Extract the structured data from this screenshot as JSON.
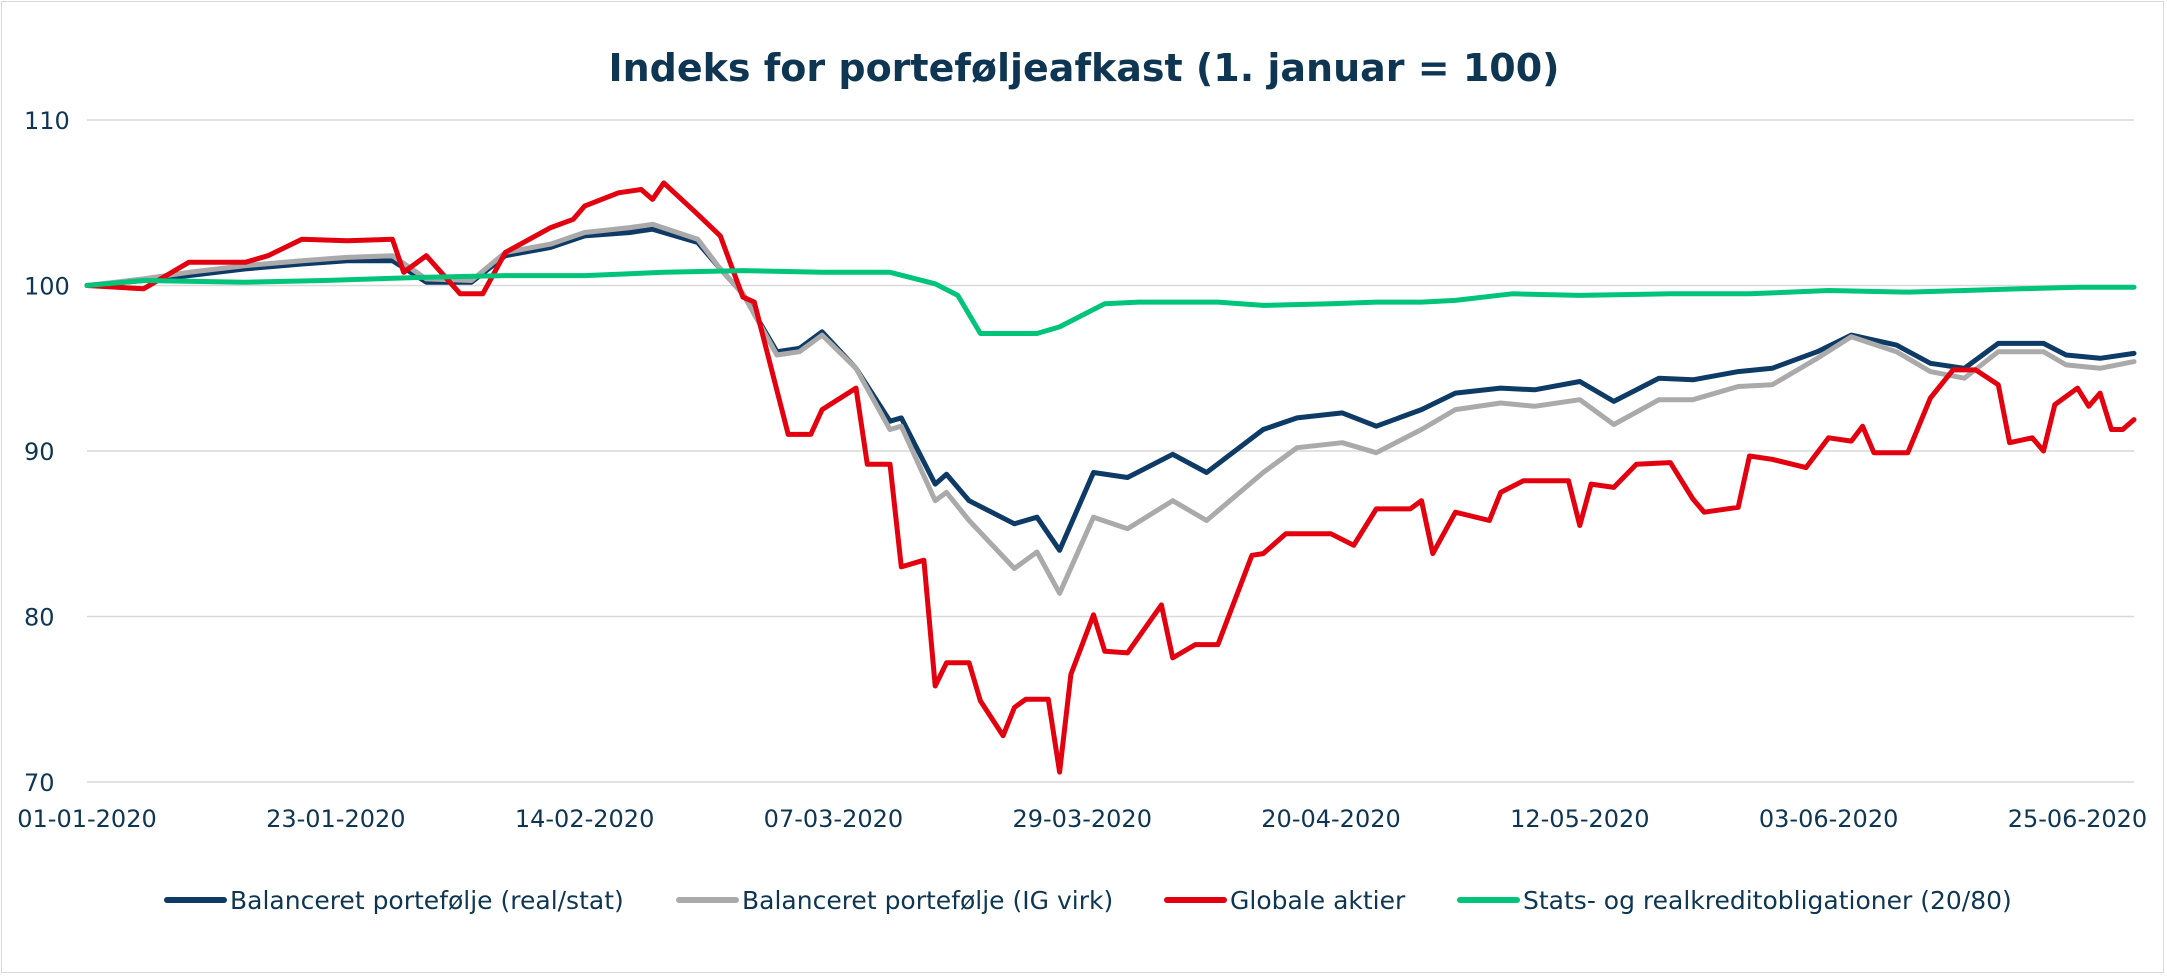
{
  "chart_data": {
    "type": "line",
    "title": "Indeks for porteføljeafkast (1. januar = 100)",
    "xlabel": "",
    "ylabel": "",
    "ylim": [
      70,
      110
    ],
    "yticks": [
      70,
      80,
      90,
      100,
      110
    ],
    "xticks": [
      "01-01-2020",
      "23-01-2020",
      "14-02-2020",
      "07-03-2020",
      "29-03-2020",
      "20-04-2020",
      "12-05-2020",
      "03-06-2020",
      "25-06-2020"
    ],
    "xlim": [
      "2020-01-01",
      "2020-06-30"
    ],
    "grid": "horizontal",
    "legend_position": "bottom",
    "series": [
      {
        "name": "Balanceret portefølje (real/stat)",
        "color": "#0e3a66",
        "points": [
          [
            "2020-01-01",
            100.0
          ],
          [
            "2020-01-06",
            100.3
          ],
          [
            "2020-01-10",
            100.6
          ],
          [
            "2020-01-15",
            101.0
          ],
          [
            "2020-01-20",
            101.3
          ],
          [
            "2020-01-24",
            101.5
          ],
          [
            "2020-01-28",
            101.5
          ],
          [
            "2020-01-31",
            100.2
          ],
          [
            "2020-02-04",
            100.2
          ],
          [
            "2020-02-07",
            101.8
          ],
          [
            "2020-02-11",
            102.3
          ],
          [
            "2020-02-14",
            103.0
          ],
          [
            "2020-02-18",
            103.2
          ],
          [
            "2020-02-20",
            103.4
          ],
          [
            "2020-02-24",
            102.6
          ],
          [
            "2020-02-26",
            101.0
          ],
          [
            "2020-02-28",
            99.5
          ],
          [
            "2020-03-02",
            96.0
          ],
          [
            "2020-03-04",
            96.2
          ],
          [
            "2020-03-06",
            97.2
          ],
          [
            "2020-03-09",
            95.0
          ],
          [
            "2020-03-12",
            91.8
          ],
          [
            "2020-03-13",
            92.0
          ],
          [
            "2020-03-16",
            88.0
          ],
          [
            "2020-03-17",
            88.6
          ],
          [
            "2020-03-19",
            87.0
          ],
          [
            "2020-03-23",
            85.6
          ],
          [
            "2020-03-25",
            86.0
          ],
          [
            "2020-03-27",
            84.0
          ],
          [
            "2020-03-30",
            88.7
          ],
          [
            "2020-04-02",
            88.4
          ],
          [
            "2020-04-06",
            89.8
          ],
          [
            "2020-04-09",
            88.7
          ],
          [
            "2020-04-14",
            91.3
          ],
          [
            "2020-04-17",
            92.0
          ],
          [
            "2020-04-21",
            92.3
          ],
          [
            "2020-04-24",
            91.5
          ],
          [
            "2020-04-28",
            92.5
          ],
          [
            "2020-05-01",
            93.5
          ],
          [
            "2020-05-05",
            93.8
          ],
          [
            "2020-05-08",
            93.7
          ],
          [
            "2020-05-12",
            94.2
          ],
          [
            "2020-05-15",
            93.0
          ],
          [
            "2020-05-19",
            94.4
          ],
          [
            "2020-05-22",
            94.3
          ],
          [
            "2020-05-26",
            94.8
          ],
          [
            "2020-05-29",
            95.0
          ],
          [
            "2020-06-02",
            96.0
          ],
          [
            "2020-06-05",
            97.0
          ],
          [
            "2020-06-09",
            96.4
          ],
          [
            "2020-06-12",
            95.3
          ],
          [
            "2020-06-15",
            95.0
          ],
          [
            "2020-06-18",
            96.5
          ],
          [
            "2020-06-22",
            96.5
          ],
          [
            "2020-06-24",
            95.8
          ],
          [
            "2020-06-27",
            95.6
          ],
          [
            "2020-06-30",
            95.9
          ]
        ]
      },
      {
        "name": "Balanceret portefølje (IG virk)",
        "color": "#aaaaaa",
        "points": [
          [
            "2020-01-01",
            100.0
          ],
          [
            "2020-01-06",
            100.4
          ],
          [
            "2020-01-10",
            100.8
          ],
          [
            "2020-01-15",
            101.2
          ],
          [
            "2020-01-20",
            101.5
          ],
          [
            "2020-01-24",
            101.7
          ],
          [
            "2020-01-28",
            101.8
          ],
          [
            "2020-01-31",
            100.4
          ],
          [
            "2020-02-04",
            100.3
          ],
          [
            "2020-02-07",
            102.0
          ],
          [
            "2020-02-11",
            102.5
          ],
          [
            "2020-02-14",
            103.2
          ],
          [
            "2020-02-18",
            103.5
          ],
          [
            "2020-02-20",
            103.7
          ],
          [
            "2020-02-24",
            102.8
          ],
          [
            "2020-02-26",
            101.0
          ],
          [
            "2020-02-28",
            99.5
          ],
          [
            "2020-03-02",
            95.8
          ],
          [
            "2020-03-04",
            96.0
          ],
          [
            "2020-03-06",
            97.0
          ],
          [
            "2020-03-09",
            95.0
          ],
          [
            "2020-03-12",
            91.3
          ],
          [
            "2020-03-13",
            91.5
          ],
          [
            "2020-03-16",
            87.0
          ],
          [
            "2020-03-17",
            87.5
          ],
          [
            "2020-03-19",
            85.8
          ],
          [
            "2020-03-23",
            82.9
          ],
          [
            "2020-03-25",
            83.9
          ],
          [
            "2020-03-27",
            81.4
          ],
          [
            "2020-03-30",
            86.0
          ],
          [
            "2020-04-02",
            85.3
          ],
          [
            "2020-04-06",
            87.0
          ],
          [
            "2020-04-09",
            85.8
          ],
          [
            "2020-04-14",
            88.7
          ],
          [
            "2020-04-17",
            90.2
          ],
          [
            "2020-04-21",
            90.5
          ],
          [
            "2020-04-24",
            89.9
          ],
          [
            "2020-04-28",
            91.3
          ],
          [
            "2020-05-01",
            92.5
          ],
          [
            "2020-05-05",
            92.9
          ],
          [
            "2020-05-08",
            92.7
          ],
          [
            "2020-05-12",
            93.1
          ],
          [
            "2020-05-15",
            91.6
          ],
          [
            "2020-05-19",
            93.1
          ],
          [
            "2020-05-22",
            93.1
          ],
          [
            "2020-05-26",
            93.9
          ],
          [
            "2020-05-29",
            94.0
          ],
          [
            "2020-06-02",
            95.6
          ],
          [
            "2020-06-05",
            96.9
          ],
          [
            "2020-06-09",
            96.0
          ],
          [
            "2020-06-12",
            94.8
          ],
          [
            "2020-06-15",
            94.4
          ],
          [
            "2020-06-18",
            96.0
          ],
          [
            "2020-06-22",
            96.0
          ],
          [
            "2020-06-24",
            95.2
          ],
          [
            "2020-06-27",
            95.0
          ],
          [
            "2020-06-30",
            95.4
          ]
        ]
      },
      {
        "name": "Globale aktier",
        "color": "#e3000f",
        "points": [
          [
            "2020-01-01",
            100.0
          ],
          [
            "2020-01-06",
            99.8
          ],
          [
            "2020-01-08",
            100.6
          ],
          [
            "2020-01-10",
            101.4
          ],
          [
            "2020-01-15",
            101.4
          ],
          [
            "2020-01-17",
            101.8
          ],
          [
            "2020-01-20",
            102.8
          ],
          [
            "2020-01-24",
            102.7
          ],
          [
            "2020-01-28",
            102.8
          ],
          [
            "2020-01-29",
            100.8
          ],
          [
            "2020-01-31",
            101.8
          ],
          [
            "2020-02-03",
            99.5
          ],
          [
            "2020-02-05",
            99.5
          ],
          [
            "2020-02-07",
            102.0
          ],
          [
            "2020-02-11",
            103.5
          ],
          [
            "2020-02-13",
            104.0
          ],
          [
            "2020-02-14",
            104.8
          ],
          [
            "2020-02-17",
            105.6
          ],
          [
            "2020-02-19",
            105.8
          ],
          [
            "2020-02-20",
            105.2
          ],
          [
            "2020-02-21",
            106.2
          ],
          [
            "2020-02-24",
            104.3
          ],
          [
            "2020-02-26",
            103.0
          ],
          [
            "2020-02-28",
            99.3
          ],
          [
            "2020-02-29",
            99.0
          ],
          [
            "2020-03-03",
            91.0
          ],
          [
            "2020-03-05",
            91.0
          ],
          [
            "2020-03-06",
            92.5
          ],
          [
            "2020-03-09",
            93.8
          ],
          [
            "2020-03-10",
            89.2
          ],
          [
            "2020-03-12",
            89.2
          ],
          [
            "2020-03-13",
            83.0
          ],
          [
            "2020-03-15",
            83.4
          ],
          [
            "2020-03-16",
            75.8
          ],
          [
            "2020-03-17",
            77.2
          ],
          [
            "2020-03-19",
            77.2
          ],
          [
            "2020-03-20",
            74.9
          ],
          [
            "2020-03-22",
            72.8
          ],
          [
            "2020-03-23",
            74.5
          ],
          [
            "2020-03-24",
            75.0
          ],
          [
            "2020-03-26",
            75.0
          ],
          [
            "2020-03-27",
            70.6
          ],
          [
            "2020-03-28",
            76.5
          ],
          [
            "2020-03-30",
            80.1
          ],
          [
            "2020-03-31",
            77.9
          ],
          [
            "2020-04-02",
            77.8
          ],
          [
            "2020-04-05",
            80.7
          ],
          [
            "2020-04-06",
            77.5
          ],
          [
            "2020-04-08",
            78.3
          ],
          [
            "2020-04-10",
            78.3
          ],
          [
            "2020-04-13",
            83.7
          ],
          [
            "2020-04-14",
            83.8
          ],
          [
            "2020-04-16",
            85.0
          ],
          [
            "2020-04-20",
            85.0
          ],
          [
            "2020-04-22",
            84.3
          ],
          [
            "2020-04-24",
            86.5
          ],
          [
            "2020-04-27",
            86.5
          ],
          [
            "2020-04-28",
            87.0
          ],
          [
            "2020-04-29",
            83.8
          ],
          [
            "2020-05-01",
            86.3
          ],
          [
            "2020-05-04",
            85.8
          ],
          [
            "2020-05-05",
            87.5
          ],
          [
            "2020-05-07",
            88.2
          ],
          [
            "2020-05-11",
            88.2
          ],
          [
            "2020-05-12",
            85.5
          ],
          [
            "2020-05-13",
            88.0
          ],
          [
            "2020-05-15",
            87.8
          ],
          [
            "2020-05-17",
            89.2
          ],
          [
            "2020-05-20",
            89.3
          ],
          [
            "2020-05-22",
            87.1
          ],
          [
            "2020-05-23",
            86.3
          ],
          [
            "2020-05-26",
            86.6
          ],
          [
            "2020-05-27",
            89.7
          ],
          [
            "2020-05-29",
            89.5
          ],
          [
            "2020-06-01",
            89.0
          ],
          [
            "2020-06-03",
            90.8
          ],
          [
            "2020-06-05",
            90.6
          ],
          [
            "2020-06-06",
            91.5
          ],
          [
            "2020-06-07",
            89.9
          ],
          [
            "2020-06-10",
            89.9
          ],
          [
            "2020-06-12",
            93.2
          ],
          [
            "2020-06-14",
            94.9
          ],
          [
            "2020-06-16",
            94.9
          ],
          [
            "2020-06-18",
            94.0
          ],
          [
            "2020-06-19",
            90.5
          ],
          [
            "2020-06-21",
            90.8
          ],
          [
            "2020-06-22",
            90.0
          ],
          [
            "2020-06-23",
            92.8
          ],
          [
            "2020-06-25",
            93.8
          ],
          [
            "2020-06-26",
            92.7
          ],
          [
            "2020-06-27",
            93.5
          ],
          [
            "2020-06-28",
            91.3
          ],
          [
            "2020-06-29",
            91.3
          ],
          [
            "2020-06-30",
            91.9
          ]
        ]
      },
      {
        "name": "Stats- og realkreditobligationer (20/80)",
        "color": "#00c47a",
        "points": [
          [
            "2020-01-01",
            100.0
          ],
          [
            "2020-01-06",
            100.3
          ],
          [
            "2020-01-15",
            100.2
          ],
          [
            "2020-01-22",
            100.3
          ],
          [
            "2020-01-31",
            100.5
          ],
          [
            "2020-02-07",
            100.6
          ],
          [
            "2020-02-14",
            100.6
          ],
          [
            "2020-02-21",
            100.8
          ],
          [
            "2020-02-28",
            100.9
          ],
          [
            "2020-03-06",
            100.8
          ],
          [
            "2020-03-12",
            100.8
          ],
          [
            "2020-03-16",
            100.1
          ],
          [
            "2020-03-18",
            99.4
          ],
          [
            "2020-03-20",
            97.1
          ],
          [
            "2020-03-25",
            97.1
          ],
          [
            "2020-03-27",
            97.5
          ],
          [
            "2020-03-31",
            98.9
          ],
          [
            "2020-04-03",
            99.0
          ],
          [
            "2020-04-10",
            99.0
          ],
          [
            "2020-04-14",
            98.8
          ],
          [
            "2020-04-20",
            98.9
          ],
          [
            "2020-04-24",
            99.0
          ],
          [
            "2020-04-28",
            99.0
          ],
          [
            "2020-05-01",
            99.1
          ],
          [
            "2020-05-06",
            99.5
          ],
          [
            "2020-05-12",
            99.4
          ],
          [
            "2020-05-20",
            99.5
          ],
          [
            "2020-05-27",
            99.5
          ],
          [
            "2020-06-03",
            99.7
          ],
          [
            "2020-06-10",
            99.6
          ],
          [
            "2020-06-15",
            99.7
          ],
          [
            "2020-06-20",
            99.8
          ],
          [
            "2020-06-25",
            99.9
          ],
          [
            "2020-06-30",
            99.9
          ]
        ]
      }
    ]
  }
}
